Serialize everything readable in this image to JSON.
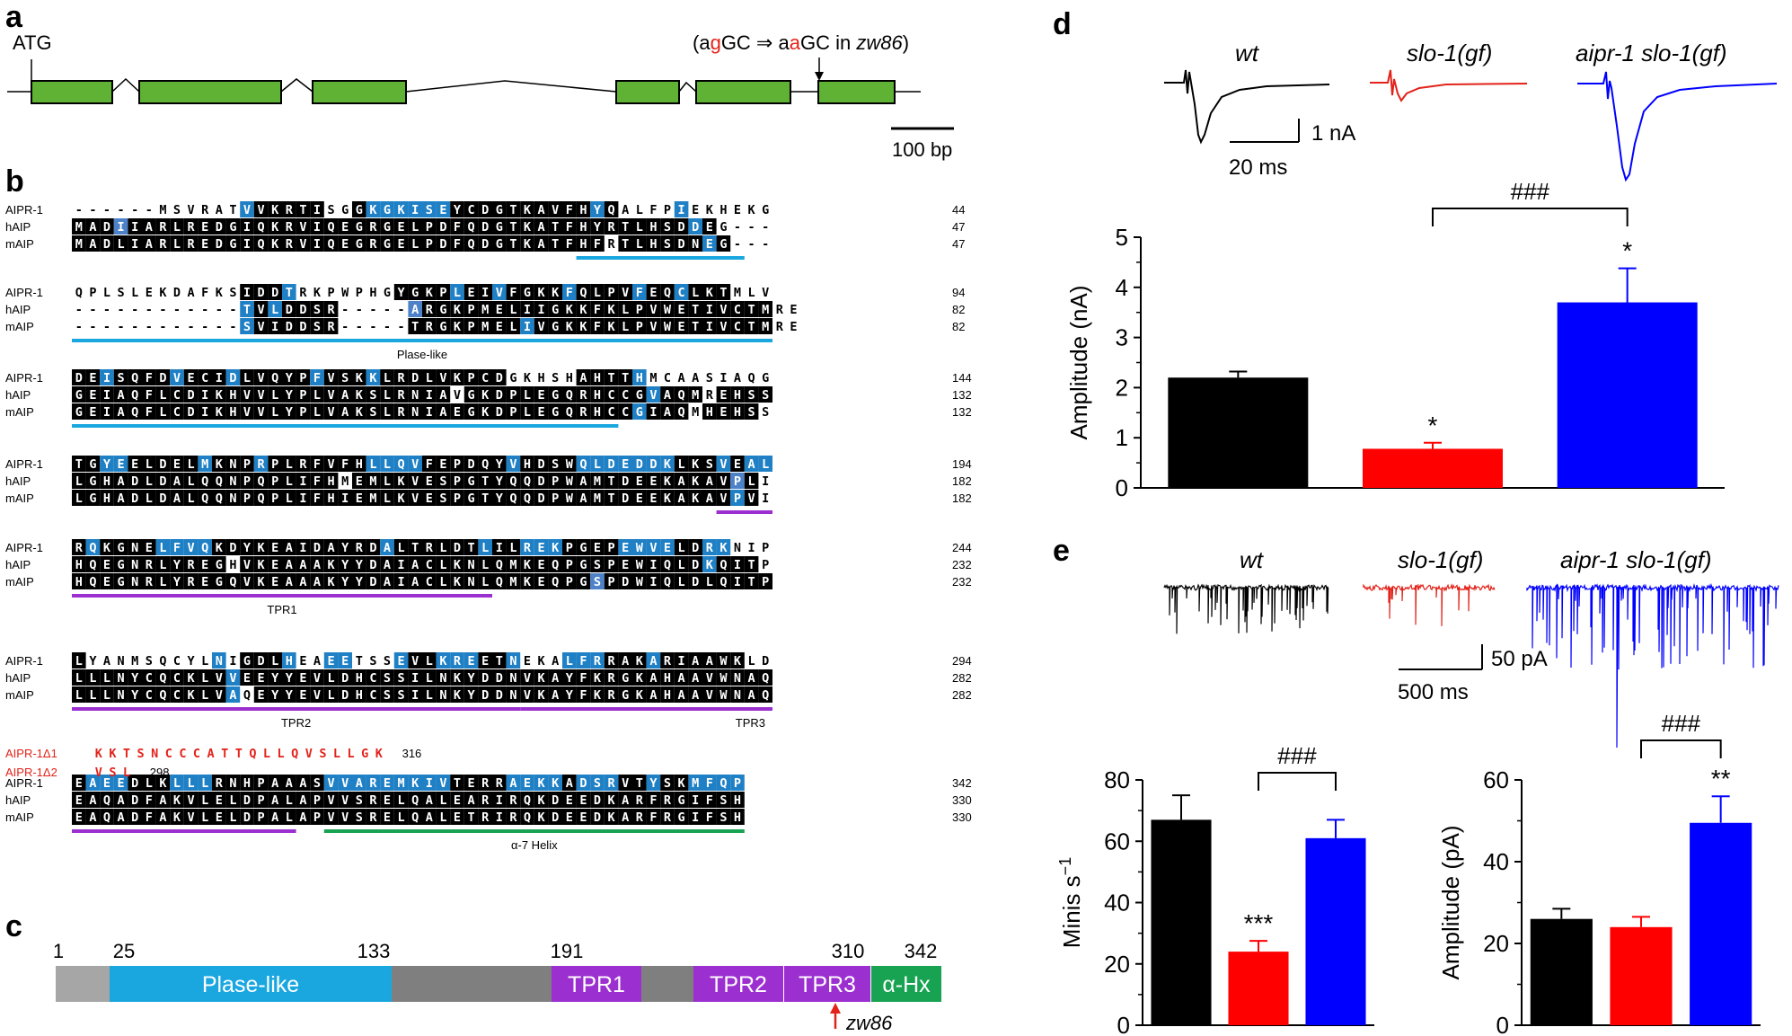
{
  "panels": {
    "a": "a",
    "b": "b",
    "c": "c",
    "d": "d",
    "e": "e"
  },
  "panel_a": {
    "start_label": "ATG",
    "mutation_note": {
      "open": "(a",
      "g1": "g",
      "mid": "GC ⇒ a",
      "a2": "a",
      "close": "GC in ",
      "allele": "zw86",
      "end": ")"
    },
    "scale_label": "100 bp",
    "colors": {
      "exon": "#5fb233",
      "mut": "#e2231a"
    }
  },
  "panel_b": {
    "colors": {
      "black": "#000000",
      "blue": "#1f80c5",
      "lightblue": "#4d82c9",
      "plase": "#1aa7e0",
      "tpr": "#9b2fd0",
      "helix": "#17a352",
      "deletion": "#e2231a"
    },
    "blocks": [
      {
        "rows": [
          {
            "name": "AIPR-1",
            "seq": "------MSVRATVVKRTISGGKGKISEYCDGTKAVFHYQALFPIEKHEKG",
            "num": "44",
            "marks": "nnnnnnnnnnnnbkkkkknnkbbbbbbkkkkkkkkkkbknnnnbnnnnn"
          },
          {
            "name": "hAIP",
            "seq": "MADIIARLREDGIQKRVIQEGRGELPDFQDGTKATFHYRTLHSDDEG---",
            "num": "47",
            "marks": "kkklkkkkkkkkkkkkkkkkkkkkkkkkkkkkkkkkkkkkkkkkbknnn"
          },
          {
            "name": "mAIP",
            "seq": "MADLIARLREDGIQKRVIQEGRGELPDFQDGTKATFHFRTLHSDNEG---",
            "num": "47",
            "marks": "kkkkkkkkkkkkkkkkkkkkkkkkkkkkkkkkkkkkkknkkkkkkbknnn"
          }
        ],
        "features": [
          {
            "label": "",
            "color": "plase"
          }
        ]
      },
      {
        "rows": [
          {
            "name": "AIPR-1",
            "seq": "QPLSLEKDAFKSIDDTRKPWPHGYGKPLEIVFGKKFQLPVFEQCLKTMLV",
            "num": "94",
            "marks": "nnnnnnnnnnnnkkkbnnnnnnnkkkkbkkbkkkkbkkkkbkkbkkknn"
          },
          {
            "name": "hAIP",
            "seq": "------------TVLDDSR-----ARGKPMELIIGKKFKLPVWETIVCTMRE",
            "num": "82",
            "marks": "nnnnnnnnnnnnbkbkkkknnnnnlkkkkkkkkkkkkkkkkkkkkkkkkk"
          },
          {
            "name": "mAIP",
            "seq": "------------SVIDDSR-----TRGKPMELIVGKKFKLPVWETIVCTMRE",
            "num": "82",
            "marks": "nnnnnnnnnnnnbkkkkkknnnnnkkkkkkkkbkkkkkkkkkkkkkkkkk"
          }
        ],
        "features": [
          {
            "label": "Plase-like",
            "color": "plase"
          }
        ]
      },
      {
        "rows": [
          {
            "name": "AIPR-1",
            "seq": "DEISQFDVECIDLVQYPFVSKKLRDLVKPCDGKHSHAHTTHMCAASIAQG",
            "num": "144",
            "marks": "kkbkkkkbkkkbkkkkkbkkkbkkkkkkkkknnnnnkkkkbnnnnnnn"
          },
          {
            "name": "hAIP",
            "seq": "GEIAQFLCDIKHVVLYPLVAKSLRNIAVGKDPLEGQRHCCGVAQMREHSS",
            "num": "132",
            "marks": "kkkkkkkkkkkkkkkkkkkkkkkkkkknkkkkkkkkkkkkkbkkknkkkk"
          },
          {
            "name": "mAIP",
            "seq": "GEIAQFLCDIKHVVLYPLVAKSLRNIAEGKDPLEGQRHCCGIAQMHEHSS",
            "num": "132",
            "marks": "kkkkkkkkkkkkkkkkkkkkkkkkkkkkkkkkkkkkkkkkbkkknkkkk"
          }
        ],
        "features": [
          {
            "label": "",
            "color": "plase"
          }
        ]
      },
      {
        "rows": [
          {
            "name": "AIPR-1",
            "seq": "TGYEELDELMKNPRPLRFVFHLLQVFEPDQYVHDSWQLDEDDKLKSVEAL",
            "num": "194",
            "marks": "kkbbkkkkkbkkkbkkkkkkkbbbbkkkkkkbkkkkbbbbbbbkkkbkbb"
          },
          {
            "name": "hAIP",
            "seq": "LGHADLDALQQNPQPLIFHMEMLKVESPGTYQQDPWAMTDEEKAKAVPLI",
            "num": "182",
            "marks": "kkkkkkkkkkkkkkkkkkknkkkkkkkkkkkkkkkkkkkkkkkkkkklk"
          },
          {
            "name": "mAIP",
            "seq": "LGHADLDALQQNPQPLIFHIEMLKVESPGTYQQDPWAMTDEEKAKAVPVI",
            "num": "182",
            "marks": "kkkkkkkkkkkkkkkkkkkkkkkkkkkkkkkkkkkkkkkkkkkkkkkbk"
          }
        ],
        "features": [
          {
            "label": "",
            "color": "tpr"
          }
        ]
      },
      {
        "rows": [
          {
            "name": "AIPR-1",
            "seq": "RQKGNELFVQKDYKEAIDAYRDALTRLDTLILREKPGEPEWVELDRKNIP",
            "num": "244",
            "marks": "kbkkkkbbbbkkkkkkkkkkkkbkkkkkkbkkbbbkkkkbbbbkkbbnnn"
          },
          {
            "name": "hAIP",
            "seq": "HQEGNRLYREGHVKEAAAKYYDAIACLKNLQMKEQPGSPEWIQLDKQITP",
            "num": "232",
            "marks": "kkkkkkkkkkknkkkkkkkkkkkkkkkkkkkkkkkkkkkkkkkkkbkkk"
          },
          {
            "name": "mAIP",
            "seq": "HQEGNRLYREGQVKEAAAKYYDAIACLKNLQMKEQPGSPDWIQLDLQITP",
            "num": "232",
            "marks": "kkkkkkkkkkkkkkkkkkkkkkkkkkkkkkkkkkkkklkkkkkkkkkkkk"
          }
        ],
        "features": [
          {
            "label": "TPR1",
            "color": "tpr"
          }
        ]
      },
      {
        "rows": [
          {
            "name": "AIPR-1",
            "seq": "LYANMSQCYLNIGDLHEAEETSSEVLKREETNEKALFRRAKARIAAWKLD",
            "num": "294",
            "marks": "knnnnnnnnnbnkkkbnnbbnnnbkkbbbkkbnnnbbbkkkbkkkkkk"
          },
          {
            "name": "hAIP",
            "seq": "LLLNYCQCKLVVEEYYEVLDHCSSILNKYDDNVKAYFKRGKAHAAVWNAQ",
            "num": "282",
            "marks": "kkkkkkkkkkkbkkkkkkkkkkkkkkkkkkkkkkkkkkkkkkkkkkkkkk"
          },
          {
            "name": "mAIP",
            "seq": "LLLNYCQCKLVAQEYYEVLDHCSSILNKYDDNVKAYFKRGKAHAAVWNAQ",
            "num": "282",
            "marks": "kkkkkkkkkkkbnkkkkkkkkkkkkkkkkkkkkkkkkkkkkkkkkkkkkk"
          }
        ],
        "features": [
          {
            "label": "TPR2",
            "color": "tpr"
          },
          {
            "label": "TPR3",
            "color": "tpr"
          }
        ]
      },
      {
        "rows": [
          {
            "name": "AIPR-1",
            "seq": "EAEEDLKLLLRNHPAAASVVAREMKIVTERRAEKKADSRVTYSKMFQP",
            "num": "342",
            "marks": "kbbbkkkbbbkkkkkkkkbbbbbbbbbkkkkbbbbkbbbkkbkkbbbbn"
          },
          {
            "name": "hAIP",
            "seq": "EAQADFAKVLELDPALAPVVSRELQALEARIRQKDEEDKARFRGIFSH",
            "num": "330",
            "marks": "kkkkkkkkkkkkkkkkkkkkkkkkkkkkkkkkkkkkkkkkkkkkkkkk"
          },
          {
            "name": "mAIP",
            "seq": "EAQADFAKVLELDPALAPVVSRELQALETRIRQKDEEDKARFRGIFSH",
            "num": "330",
            "marks": "kkkkkkkkkkkkkkkkkkkkkkkkkkkkkkkkkkkkkkkkkkkkkkkk"
          }
        ],
        "features": [
          {
            "label": "",
            "color": "tpr"
          },
          {
            "label": "α-7 Helix",
            "color": "helix"
          }
        ]
      }
    ],
    "deletions": [
      {
        "name": "AIPR-1Δ1",
        "seq": "KKTSNCCCATTQLLQVSLLGK",
        "num": "316"
      },
      {
        "name": "AIPR-1Δ2",
        "seq": "VSL",
        "num": "298"
      }
    ]
  },
  "panel_c": {
    "numbers": [
      "1",
      "25",
      "133",
      "191",
      "310",
      "342"
    ],
    "domains": [
      "Plase-like",
      "TPR1",
      "TPR2",
      "TPR3",
      "α-Hx"
    ],
    "allele": "zw86",
    "colors": {
      "grey": "#a6a6a6",
      "dark": "#7f7f7f",
      "plase": "#1aa7e0",
      "tpr": "#9b2fd0",
      "helix": "#17a352",
      "arrow": "#e2231a"
    }
  },
  "panel_d": {
    "trace_labels": [
      "wt",
      "slo-1(gf)",
      "aipr-1 slo-1(gf)"
    ],
    "scale": {
      "y": "1 nA",
      "x": "20 ms"
    },
    "sig": "###",
    "chart_data": {
      "type": "bar",
      "categories": [
        "wt",
        "slo-1(gf)",
        "aipr-1 slo-1(gf)"
      ],
      "values": [
        2.2,
        0.78,
        3.7
      ],
      "errors": [
        0.12,
        0.12,
        0.68
      ],
      "stars": [
        "",
        "*",
        "*"
      ],
      "colors": [
        "#000000",
        "#ff0000",
        "#0000ff"
      ],
      "ylabel": "Amplitude (nA)",
      "ylim": [
        0,
        5
      ],
      "ticks": [
        "0",
        "1",
        "2",
        "3",
        "4",
        "5"
      ]
    }
  },
  "panel_e": {
    "trace_labels": [
      "wt",
      "slo-1(gf)",
      "aipr-1 slo-1(gf)"
    ],
    "scale": {
      "y": "50 pA",
      "x": "500 ms"
    },
    "chart_data": [
      {
        "type": "bar",
        "categories": [
          "wt",
          "slo-1(gf)",
          "aipr-1 slo-1(gf)"
        ],
        "values": [
          67,
          24,
          61
        ],
        "errors": [
          8,
          3.5,
          6
        ],
        "stars": [
          "",
          "***",
          ""
        ],
        "sig": "###",
        "colors": [
          "#000000",
          "#ff0000",
          "#0000ff"
        ],
        "ylabel": "Minis s",
        "ylabel_sup": "−1",
        "ylim": [
          0,
          80
        ],
        "ticks": [
          "0",
          "20",
          "40",
          "60",
          "80"
        ]
      },
      {
        "type": "bar",
        "categories": [
          "wt",
          "slo-1(gf)",
          "aipr-1 slo-1(gf)"
        ],
        "values": [
          26,
          24,
          49.5
        ],
        "errors": [
          2.5,
          2.5,
          6.5
        ],
        "stars": [
          "",
          "",
          "**"
        ],
        "sig": "###",
        "colors": [
          "#000000",
          "#ff0000",
          "#0000ff"
        ],
        "ylabel": "Amplitude (pA)",
        "ylim": [
          0,
          60
        ],
        "ticks": [
          "0",
          "20",
          "40",
          "60"
        ]
      }
    ]
  }
}
